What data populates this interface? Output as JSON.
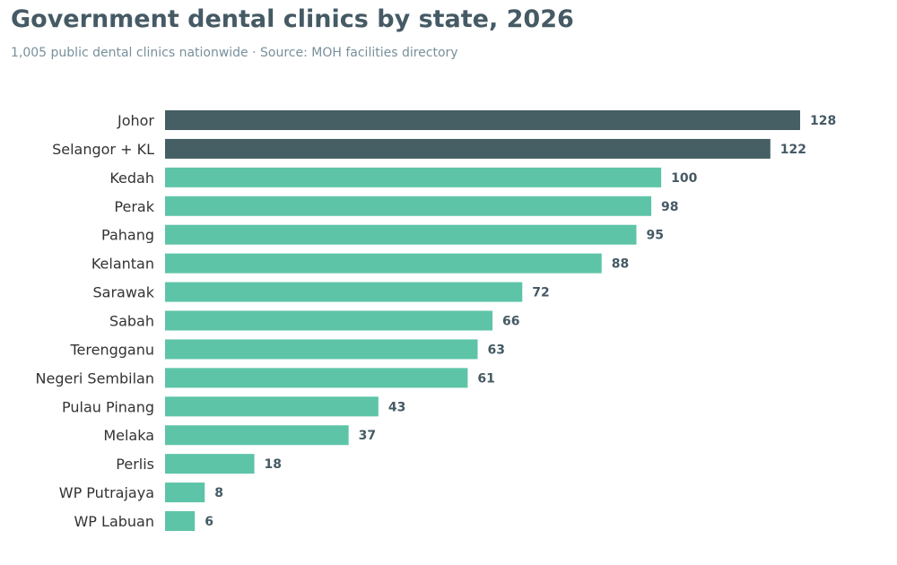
{
  "title": "Government dental clinics by state, 2026",
  "subtitle": "1,005 public dental clinics nationwide · Source: MOH facilities directory",
  "colors": {
    "highlight": "#455f64",
    "default": "#5dc4a8",
    "title": "#455a64",
    "subtitle": "#78909c",
    "value_label": "#455a64",
    "category_label": "#333333"
  },
  "chart_data": {
    "type": "bar",
    "orientation": "horizontal",
    "title": "Government dental clinics by state, 2026",
    "subtitle": "1,005 public dental clinics nationwide · Source: MOH facilities directory",
    "categories": [
      "Johor",
      "Selangor + KL",
      "Kedah",
      "Perak",
      "Pahang",
      "Kelantan",
      "Sarawak",
      "Sabah",
      "Terengganu",
      "Negeri Sembilan",
      "Pulau Pinang",
      "Melaka",
      "Perlis",
      "WP Putrajaya",
      "WP Labuan"
    ],
    "values": [
      128,
      122,
      100,
      98,
      95,
      88,
      72,
      66,
      63,
      61,
      43,
      37,
      18,
      8,
      6
    ],
    "highlighted": [
      "Johor",
      "Selangor + KL"
    ],
    "xlim": [
      0,
      128
    ],
    "grid": false,
    "axes_visible": false,
    "data_labels": true
  }
}
